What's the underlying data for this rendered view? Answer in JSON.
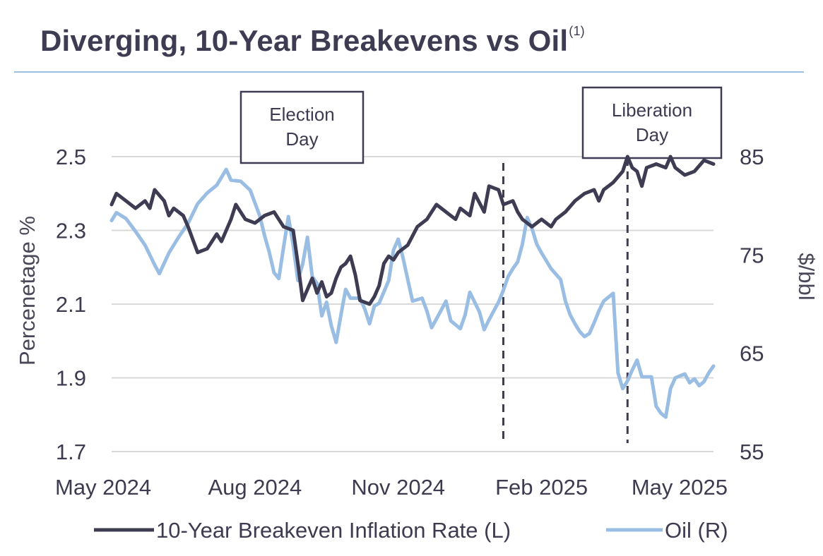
{
  "title": {
    "main": "Diverging, 10-Year Breakevens vs Oil",
    "footnote": "(1)"
  },
  "chart_data": {
    "type": "line",
    "title": "Diverging, 10-Year Breakevens vs Oil",
    "ylabel_left": "Percenetage %",
    "ylabel_right": "$/bbl",
    "ylim_left": [
      1.7,
      2.6
    ],
    "ylim_right": [
      55,
      87
    ],
    "yticks_left": [
      "2.5",
      "2.3",
      "2.1",
      "1.9",
      "1.7"
    ],
    "yticks_left_values": [
      2.5,
      2.3,
      2.1,
      1.9,
      1.7
    ],
    "yticks_right": [
      "85",
      "75",
      "65",
      "55"
    ],
    "yticks_right_values": [
      85,
      75,
      65,
      55
    ],
    "xticks": [
      "May 2024",
      "Aug 2024",
      "Nov 2024",
      "Feb 2025",
      "May 2025"
    ],
    "xticks_month_index": [
      0,
      3,
      6,
      9,
      12
    ],
    "x_range_month_index": [
      0,
      12.6
    ],
    "grid": true,
    "annotations": [
      {
        "label_line1": "Election",
        "label_line2": "Day",
        "month_index": 8.2
      },
      {
        "label_line1": "Liberation",
        "label_line2": "Day",
        "month_index": 10.8
      }
    ],
    "series": [
      {
        "name": "10-Year Breakeven Inflation Rate (L)",
        "axis": "left",
        "color": "#3e3c52",
        "points": [
          [
            0,
            2.37
          ],
          [
            0.1,
            2.4
          ],
          [
            0.3,
            2.38
          ],
          [
            0.5,
            2.36
          ],
          [
            0.7,
            2.38
          ],
          [
            0.8,
            2.36
          ],
          [
            0.9,
            2.41
          ],
          [
            1.1,
            2.38
          ],
          [
            1.2,
            2.34
          ],
          [
            1.3,
            2.36
          ],
          [
            1.5,
            2.34
          ],
          [
            1.6,
            2.31
          ],
          [
            1.8,
            2.24
          ],
          [
            2.0,
            2.25
          ],
          [
            2.2,
            2.29
          ],
          [
            2.3,
            2.27
          ],
          [
            2.5,
            2.33
          ],
          [
            2.6,
            2.37
          ],
          [
            2.8,
            2.33
          ],
          [
            3.0,
            2.32
          ],
          [
            3.2,
            2.34
          ],
          [
            3.4,
            2.35
          ],
          [
            3.6,
            2.31
          ],
          [
            3.8,
            2.3
          ],
          [
            3.9,
            2.21
          ],
          [
            4.0,
            2.11
          ],
          [
            4.1,
            2.14
          ],
          [
            4.2,
            2.17
          ],
          [
            4.3,
            2.13
          ],
          [
            4.4,
            2.16
          ],
          [
            4.5,
            2.12
          ],
          [
            4.6,
            2.13
          ],
          [
            4.7,
            2.17
          ],
          [
            4.8,
            2.2
          ],
          [
            4.9,
            2.21
          ],
          [
            5.0,
            2.23
          ],
          [
            5.1,
            2.18
          ],
          [
            5.2,
            2.11
          ],
          [
            5.4,
            2.1
          ],
          [
            5.5,
            2.12
          ],
          [
            5.6,
            2.15
          ],
          [
            5.7,
            2.21
          ],
          [
            5.8,
            2.23
          ],
          [
            5.9,
            2.22
          ],
          [
            6.0,
            2.24
          ],
          [
            6.2,
            2.26
          ],
          [
            6.4,
            2.31
          ],
          [
            6.6,
            2.33
          ],
          [
            6.8,
            2.37
          ],
          [
            7.0,
            2.35
          ],
          [
            7.2,
            2.33
          ],
          [
            7.3,
            2.36
          ],
          [
            7.5,
            2.34
          ],
          [
            7.6,
            2.4
          ],
          [
            7.8,
            2.35
          ],
          [
            7.9,
            2.42
          ],
          [
            8.1,
            2.41
          ],
          [
            8.2,
            2.37
          ],
          [
            8.4,
            2.38
          ],
          [
            8.5,
            2.35
          ],
          [
            8.6,
            2.33
          ],
          [
            8.8,
            2.31
          ],
          [
            9.0,
            2.33
          ],
          [
            9.2,
            2.31
          ],
          [
            9.3,
            2.33
          ],
          [
            9.5,
            2.35
          ],
          [
            9.7,
            2.38
          ],
          [
            9.9,
            2.4
          ],
          [
            10.1,
            2.41
          ],
          [
            10.2,
            2.38
          ],
          [
            10.3,
            2.41
          ],
          [
            10.5,
            2.43
          ],
          [
            10.7,
            2.46
          ],
          [
            10.8,
            2.5
          ],
          [
            10.9,
            2.47
          ],
          [
            11.0,
            2.46
          ],
          [
            11.1,
            2.42
          ],
          [
            11.2,
            2.47
          ],
          [
            11.4,
            2.48
          ],
          [
            11.6,
            2.47
          ],
          [
            11.7,
            2.5
          ],
          [
            11.8,
            2.47
          ],
          [
            12.0,
            2.45
          ],
          [
            12.2,
            2.46
          ],
          [
            12.4,
            2.49
          ],
          [
            12.6,
            2.48
          ]
        ]
      },
      {
        "name": "Oil (R)",
        "axis": "right",
        "color": "#99bde3",
        "points": [
          [
            0,
            78.5
          ],
          [
            0.1,
            79.3
          ],
          [
            0.3,
            78.7
          ],
          [
            0.5,
            77.4
          ],
          [
            0.7,
            76.0
          ],
          [
            0.8,
            75.0
          ],
          [
            0.9,
            74.0
          ],
          [
            1.0,
            73.1
          ],
          [
            1.2,
            75.2
          ],
          [
            1.4,
            76.8
          ],
          [
            1.6,
            78.2
          ],
          [
            1.8,
            80.2
          ],
          [
            2.0,
            81.3
          ],
          [
            2.2,
            82.1
          ],
          [
            2.4,
            83.7
          ],
          [
            2.5,
            82.6
          ],
          [
            2.7,
            82.5
          ],
          [
            2.9,
            81.6
          ],
          [
            3.1,
            79.0
          ],
          [
            3.2,
            77.0
          ],
          [
            3.3,
            75.3
          ],
          [
            3.4,
            73.2
          ],
          [
            3.5,
            72.6
          ],
          [
            3.6,
            75.8
          ],
          [
            3.7,
            78.9
          ],
          [
            3.8,
            76.0
          ],
          [
            3.9,
            72.4
          ],
          [
            4.0,
            74.1
          ],
          [
            4.1,
            76.8
          ],
          [
            4.2,
            72.8
          ],
          [
            4.3,
            72.1
          ],
          [
            4.4,
            68.8
          ],
          [
            4.5,
            70.2
          ],
          [
            4.6,
            67.8
          ],
          [
            4.7,
            66.1
          ],
          [
            4.8,
            68.9
          ],
          [
            4.9,
            71.5
          ],
          [
            5.0,
            70.6
          ],
          [
            5.2,
            70.6
          ],
          [
            5.3,
            69.5
          ],
          [
            5.4,
            68.0
          ],
          [
            5.5,
            69.8
          ],
          [
            5.6,
            70.1
          ],
          [
            5.8,
            72.4
          ],
          [
            5.9,
            75.5
          ],
          [
            6.0,
            76.6
          ],
          [
            6.1,
            74.7
          ],
          [
            6.2,
            72.5
          ],
          [
            6.3,
            70.3
          ],
          [
            6.5,
            70.6
          ],
          [
            6.6,
            69.3
          ],
          [
            6.7,
            67.6
          ],
          [
            6.9,
            69.4
          ],
          [
            7.0,
            70.3
          ],
          [
            7.1,
            68.3
          ],
          [
            7.3,
            67.5
          ],
          [
            7.4,
            68.9
          ],
          [
            7.5,
            71.2
          ],
          [
            7.7,
            69.2
          ],
          [
            7.8,
            67.4
          ],
          [
            7.9,
            68.4
          ],
          [
            8.1,
            70.2
          ],
          [
            8.2,
            71.4
          ],
          [
            8.3,
            72.8
          ],
          [
            8.4,
            73.6
          ],
          [
            8.5,
            74.3
          ],
          [
            8.6,
            76.1
          ],
          [
            8.7,
            78.8
          ],
          [
            8.8,
            77.7
          ],
          [
            8.9,
            76.1
          ],
          [
            9.0,
            75.2
          ],
          [
            9.2,
            73.6
          ],
          [
            9.4,
            72.5
          ],
          [
            9.5,
            70.3
          ],
          [
            9.6,
            68.9
          ],
          [
            9.7,
            68.0
          ],
          [
            9.8,
            67.2
          ],
          [
            9.9,
            66.7
          ],
          [
            10.0,
            67.0
          ],
          [
            10.1,
            68.1
          ],
          [
            10.2,
            69.3
          ],
          [
            10.3,
            70.3
          ],
          [
            10.5,
            71.1
          ],
          [
            10.6,
            63.0
          ],
          [
            10.7,
            61.4
          ],
          [
            10.8,
            62.2
          ],
          [
            10.9,
            63.3
          ],
          [
            11.0,
            64.3
          ],
          [
            11.1,
            62.6
          ],
          [
            11.3,
            62.6
          ],
          [
            11.4,
            59.6
          ],
          [
            11.5,
            58.9
          ],
          [
            11.6,
            58.5
          ],
          [
            11.7,
            61.4
          ],
          [
            11.8,
            62.5
          ],
          [
            12.0,
            62.9
          ],
          [
            12.1,
            62.0
          ],
          [
            12.2,
            62.4
          ],
          [
            12.3,
            61.7
          ],
          [
            12.4,
            62.1
          ],
          [
            12.5,
            63.0
          ],
          [
            12.6,
            63.7
          ]
        ]
      }
    ]
  },
  "legend": {
    "items": [
      {
        "label": "10-Year Breakeven Inflation Rate (L)",
        "color": "#3e3c52"
      },
      {
        "label": "Oil (R)",
        "color": "#99bde3"
      }
    ]
  }
}
